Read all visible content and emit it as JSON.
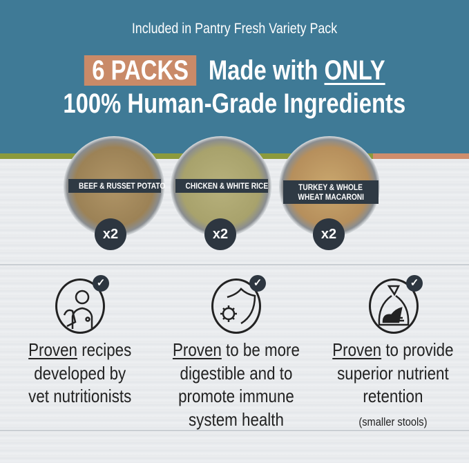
{
  "header": {
    "subtitle": "Included in Pantry Fresh Variety Pack",
    "packs_badge": "6 PACKS",
    "headline_part1": "Made with",
    "headline_emphasis": "ONLY",
    "headline_line2": "100% Human-Grade Ingredients"
  },
  "colors": {
    "header_bg": "#3f7a96",
    "badge_bg": "#c98a68",
    "stripe_green": "#8c9a3c",
    "stripe_tan": "#cf8d6c",
    "label_bg": "#2f3a44"
  },
  "recipes": [
    {
      "label": "BEEF & RUSSET POTATO",
      "quantity": "x2"
    },
    {
      "label_line1": "CHICKEN & WHITE RICE",
      "quantity": "x2"
    },
    {
      "label_line1": "TURKEY & WHOLE",
      "label_line2": "WHEAT MACARONI",
      "quantity": "x2"
    }
  ],
  "benefits": [
    {
      "icon": "vet-with-dog-icon",
      "emphasis": "Proven",
      "line1_rest": " recipes",
      "line2": "developed by",
      "line3": "vet nutritionists"
    },
    {
      "icon": "shield-virus-icon",
      "emphasis": "Proven",
      "line1_rest": " to be more",
      "line2": "digestible and to",
      "line3": "promote immune",
      "line4": "system health"
    },
    {
      "icon": "waste-bag-icon",
      "emphasis": "Proven",
      "line1_rest": " to provide",
      "line2": "superior nutrient",
      "line3": "retention",
      "note": "(smaller stools)"
    }
  ]
}
